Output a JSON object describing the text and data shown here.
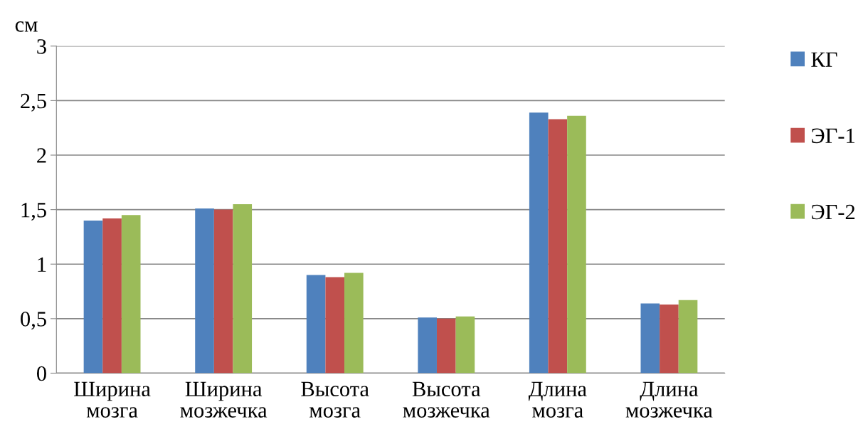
{
  "chart_data": {
    "type": "bar",
    "ylabel": "см",
    "categories": [
      "Ширина\nмозга",
      "Ширина\nмозжечка",
      "Высота\nмозга",
      "Высота\nмозжечка",
      "Длина\nмозга",
      "Длина\nмозжечка"
    ],
    "series": [
      {
        "name": "КГ",
        "color": "#4f81bd",
        "values": [
          1.4,
          1.51,
          0.9,
          0.51,
          2.39,
          0.64
        ]
      },
      {
        "name": "ЭГ-1",
        "color": "#c0504d",
        "values": [
          1.42,
          1.5,
          0.88,
          0.5,
          2.33,
          0.63
        ]
      },
      {
        "name": "ЭГ-2",
        "color": "#9bbb59",
        "values": [
          1.45,
          1.55,
          0.92,
          0.52,
          2.36,
          0.67
        ]
      }
    ],
    "ylim": [
      0,
      3
    ],
    "yticks": [
      0,
      {
        "value": 0.5,
        "label": "0,5"
      },
      1,
      {
        "value": 1.5,
        "label": "1,5"
      },
      2,
      {
        "value": 2.5,
        "label": "2,5"
      },
      3
    ],
    "grid": "y",
    "legend": "right"
  }
}
